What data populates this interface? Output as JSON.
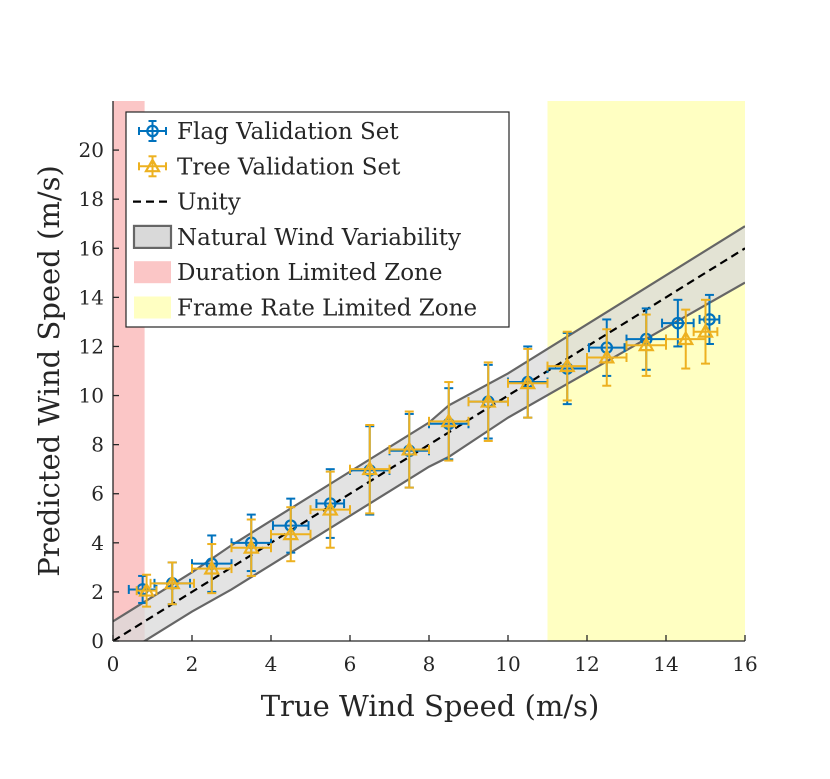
{
  "chart_data": {
    "type": "scatter",
    "title": "",
    "xlabel": "True Wind Speed (m/s)",
    "ylabel": "Predicted Wind Speed (m/s)",
    "xlim": [
      0,
      16
    ],
    "ylim": [
      0,
      22
    ],
    "x_ticks": [
      0,
      2,
      4,
      6,
      8,
      10,
      12,
      14,
      16
    ],
    "y_ticks": [
      0,
      2,
      4,
      6,
      8,
      10,
      12,
      14,
      16,
      18,
      20
    ],
    "grid": false,
    "legend_position": "top-left",
    "series": [
      {
        "name": "Flag Validation Set",
        "color": "#0072BD",
        "marker": "circle",
        "points": [
          {
            "x": 0.75,
            "y": 2.1,
            "xerr": 0.35,
            "yerr": 0.55
          },
          {
            "x": 1.5,
            "y": 2.35,
            "xerr": 0.45,
            "yerr": 0.85
          },
          {
            "x": 2.5,
            "y": 3.15,
            "xerr": 0.5,
            "yerr": 1.15
          },
          {
            "x": 3.5,
            "y": 4.0,
            "xerr": 0.5,
            "yerr": 1.15
          },
          {
            "x": 4.5,
            "y": 4.7,
            "xerr": 0.45,
            "yerr": 1.1
          },
          {
            "x": 5.5,
            "y": 5.6,
            "xerr": 0.35,
            "yerr": 1.4
          },
          {
            "x": 6.5,
            "y": 6.95,
            "xerr": 0.5,
            "yerr": 1.8
          },
          {
            "x": 7.5,
            "y": 7.75,
            "xerr": 0.5,
            "yerr": 1.5
          },
          {
            "x": 8.5,
            "y": 8.85,
            "xerr": 0.5,
            "yerr": 1.45
          },
          {
            "x": 9.5,
            "y": 9.75,
            "xerr": 0.5,
            "yerr": 1.5
          },
          {
            "x": 10.5,
            "y": 10.55,
            "xerr": 0.5,
            "yerr": 1.45
          },
          {
            "x": 11.5,
            "y": 11.1,
            "xerr": 0.5,
            "yerr": 1.45
          },
          {
            "x": 12.5,
            "y": 11.95,
            "xerr": 0.45,
            "yerr": 1.15
          },
          {
            "x": 13.5,
            "y": 12.3,
            "xerr": 0.5,
            "yerr": 1.25
          },
          {
            "x": 14.3,
            "y": 12.95,
            "xerr": 0.4,
            "yerr": 0.95
          },
          {
            "x": 15.1,
            "y": 13.1,
            "xerr": 0.25,
            "yerr": 1.0
          }
        ]
      },
      {
        "name": "Tree Validation Set",
        "color": "#EDB120",
        "marker": "triangle",
        "points": [
          {
            "x": 0.85,
            "y": 2.05,
            "xerr": 0.25,
            "yerr": 0.65
          },
          {
            "x": 1.5,
            "y": 2.35,
            "xerr": 0.55,
            "yerr": 0.85
          },
          {
            "x": 2.5,
            "y": 2.95,
            "xerr": 0.5,
            "yerr": 1.0
          },
          {
            "x": 3.5,
            "y": 3.8,
            "xerr": 0.5,
            "yerr": 1.15
          },
          {
            "x": 4.5,
            "y": 4.35,
            "xerr": 0.5,
            "yerr": 1.1
          },
          {
            "x": 5.5,
            "y": 5.35,
            "xerr": 0.5,
            "yerr": 1.55
          },
          {
            "x": 6.5,
            "y": 7.0,
            "xerr": 0.5,
            "yerr": 1.8
          },
          {
            "x": 7.5,
            "y": 7.8,
            "xerr": 0.5,
            "yerr": 1.55
          },
          {
            "x": 8.5,
            "y": 8.95,
            "xerr": 0.5,
            "yerr": 1.6
          },
          {
            "x": 9.5,
            "y": 9.75,
            "xerr": 0.5,
            "yerr": 1.6
          },
          {
            "x": 10.5,
            "y": 10.5,
            "xerr": 0.5,
            "yerr": 1.4
          },
          {
            "x": 11.5,
            "y": 11.2,
            "xerr": 0.5,
            "yerr": 1.4
          },
          {
            "x": 12.5,
            "y": 11.55,
            "xerr": 0.5,
            "yerr": 1.15
          },
          {
            "x": 13.5,
            "y": 12.05,
            "xerr": 0.5,
            "yerr": 1.25
          },
          {
            "x": 14.5,
            "y": 12.3,
            "xerr": 0.5,
            "yerr": 1.2
          },
          {
            "x": 15.0,
            "y": 12.6,
            "xerr": 0.3,
            "yerr": 1.3
          }
        ]
      }
    ],
    "unity_line": {
      "name": "Unity",
      "style": "dashed",
      "color": "#000000",
      "x": [
        0,
        16
      ],
      "y": [
        0,
        16
      ]
    },
    "variability_band": {
      "name": "Natural Wind Variability",
      "fill": "#D9D9D9",
      "stroke": "#666666",
      "upper": [
        [
          0,
          0.8
        ],
        [
          2,
          2.8
        ],
        [
          3,
          3.9
        ],
        [
          4,
          4.9
        ],
        [
          7,
          7.9
        ],
        [
          8,
          8.9
        ],
        [
          8.5,
          9.6
        ],
        [
          10,
          10.9
        ],
        [
          16,
          16.9
        ]
      ],
      "lower": [
        [
          0,
          -0.8
        ],
        [
          2,
          1.2
        ],
        [
          3,
          2.1
        ],
        [
          4,
          3.1
        ],
        [
          7,
          6.1
        ],
        [
          8,
          7.1
        ],
        [
          8.5,
          7.5
        ],
        [
          10,
          9.1
        ],
        [
          16,
          14.6
        ]
      ]
    },
    "zones": [
      {
        "name": "Duration Limited Zone",
        "x": [
          0,
          0.8
        ],
        "color": "#FBC6C6"
      },
      {
        "name": "Frame Rate Limited Zone",
        "x": [
          11,
          16
        ],
        "color": "#FFFFC2"
      }
    ],
    "legend": [
      {
        "label": "Flag Validation Set",
        "kind": "flag"
      },
      {
        "label": "Tree Validation Set",
        "kind": "tree"
      },
      {
        "label": "Unity",
        "kind": "unity"
      },
      {
        "label": "Natural Wind Variability",
        "kind": "band"
      },
      {
        "label": "Duration Limited Zone",
        "kind": "zone-red"
      },
      {
        "label": "Frame Rate Limited Zone",
        "kind": "zone-yellow"
      }
    ]
  }
}
